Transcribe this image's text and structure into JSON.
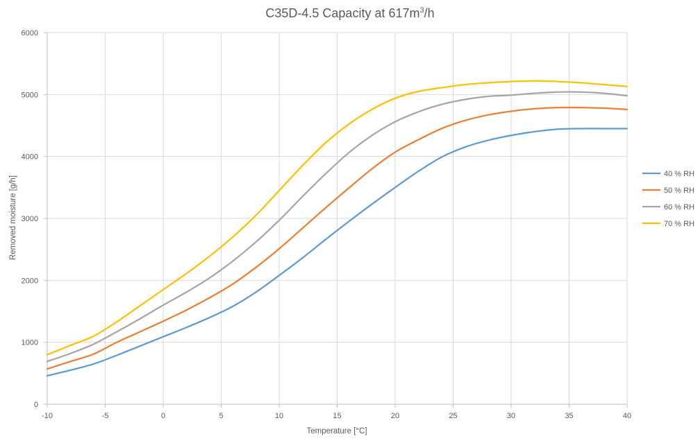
{
  "chart_data": {
    "type": "line",
    "title_main": "C35D-4.5 Capacity at 617m",
    "title_sup": "3",
    "title_end": "/h",
    "xlabel": "Temperature [°C]",
    "ylabel": "Removed moisture [g/h]",
    "xlim": [
      -10,
      40
    ],
    "ylim": [
      0,
      6000
    ],
    "x_ticks": [
      -10,
      -5,
      0,
      5,
      10,
      15,
      20,
      25,
      30,
      35,
      40
    ],
    "y_ticks": [
      0,
      1000,
      2000,
      3000,
      4000,
      5000,
      6000
    ],
    "grid": true,
    "legend_position": "right",
    "x": [
      -10,
      -8,
      -6,
      -4,
      -2,
      0,
      2,
      4,
      6,
      8,
      10,
      12,
      14,
      16,
      18,
      20,
      22,
      24,
      26,
      28,
      30,
      32,
      34,
      36,
      38,
      40
    ],
    "series": [
      {
        "name": "40 % RH",
        "color": "#5B9BD5",
        "values": [
          460,
          550,
          650,
          790,
          940,
          1090,
          1240,
          1400,
          1580,
          1810,
          2080,
          2360,
          2660,
          2950,
          3230,
          3500,
          3760,
          3990,
          4150,
          4260,
          4340,
          4400,
          4440,
          4450,
          4450,
          4450
        ]
      },
      {
        "name": "50 % RH",
        "color": "#ED7D31",
        "values": [
          570,
          690,
          810,
          1000,
          1170,
          1340,
          1520,
          1720,
          1940,
          2210,
          2510,
          2840,
          3170,
          3490,
          3800,
          4070,
          4270,
          4450,
          4580,
          4670,
          4730,
          4770,
          4790,
          4790,
          4780,
          4760
        ]
      },
      {
        "name": "60 % RH",
        "color": "#A5A5A5",
        "values": [
          690,
          820,
          970,
          1170,
          1380,
          1600,
          1810,
          2040,
          2310,
          2620,
          2970,
          3350,
          3720,
          4060,
          4340,
          4560,
          4720,
          4840,
          4920,
          4970,
          4990,
          5020,
          5040,
          5040,
          5020,
          4980
        ]
      },
      {
        "name": "70 % RH",
        "color": "#FFC000",
        "values": [
          800,
          950,
          1100,
          1330,
          1590,
          1850,
          2110,
          2390,
          2700,
          3050,
          3450,
          3850,
          4220,
          4520,
          4760,
          4940,
          5050,
          5110,
          5160,
          5190,
          5210,
          5220,
          5210,
          5190,
          5160,
          5130
        ]
      }
    ]
  }
}
